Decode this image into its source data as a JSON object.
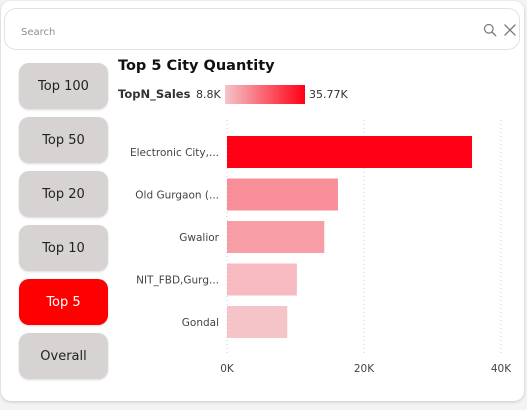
{
  "search": {
    "placeholder": "Search"
  },
  "slicer": {
    "items": [
      {
        "label": "Top 100",
        "active": false
      },
      {
        "label": "Top 50",
        "active": false
      },
      {
        "label": "Top 20",
        "active": false
      },
      {
        "label": "Top 10",
        "active": false
      },
      {
        "label": "Top 5",
        "active": true
      },
      {
        "label": "Overall",
        "active": false
      }
    ],
    "active_color": "#ff0000",
    "inactive_color": "#d6d3d2"
  },
  "legend": {
    "title": "TopN_Sales",
    "min_label": "8.8K",
    "max_label": "35.77K",
    "min_color": "#f5c4c9",
    "max_color": "#ff0015"
  },
  "chart_data": {
    "type": "bar",
    "orientation": "horizontal",
    "title": "Top 5 City Quantity",
    "categories": [
      "Electronic City,...",
      "Old Gurgaon (...",
      "Gwalior",
      "NIT_FBD,Gurg...",
      "Gondal"
    ],
    "values": [
      35770,
      16200,
      14200,
      10200,
      8800
    ],
    "xlim": [
      0,
      40000
    ],
    "x_ticks": [
      "0K",
      "20K",
      "40K"
    ],
    "x_tick_values": [
      0,
      20000,
      40000
    ],
    "grid": "vertical-dotted",
    "color_scale": [
      "#f5c4c9",
      "#ff0015"
    ]
  }
}
